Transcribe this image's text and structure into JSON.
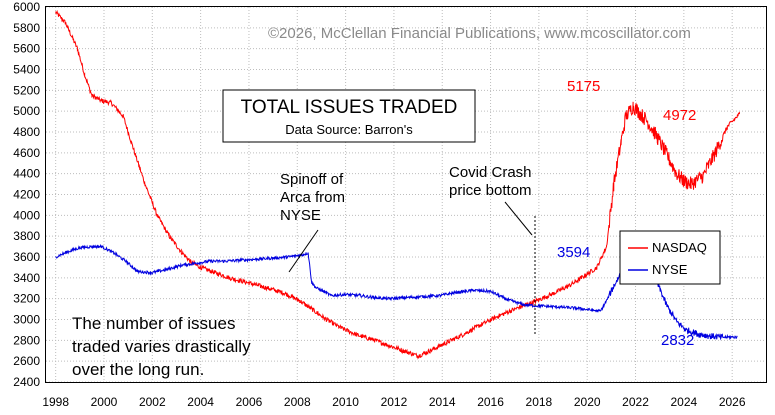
{
  "copyright": "©2026, McClellan Financial Publications, www.mcoscillator.com",
  "chart_data": {
    "type": "line",
    "title": "TOTAL ISSUES TRADED",
    "subtitle": "Data Source: Barron's",
    "xlim": [
      1997.6,
      2027.4
    ],
    "ylim": [
      2400,
      6000
    ],
    "y_ticks": [
      "2400",
      "2600",
      "2800",
      "3000",
      "3200",
      "3400",
      "3600",
      "3800",
      "4000",
      "4200",
      "4400",
      "4600",
      "4800",
      "5000",
      "5200",
      "5400",
      "5600",
      "5800",
      "6000"
    ],
    "x_ticks": [
      "1998",
      "2000",
      "2002",
      "2004",
      "2006",
      "2008",
      "2010",
      "2012",
      "2014",
      "2016",
      "2018",
      "2020",
      "2022",
      "2024",
      "2026"
    ],
    "grid": true,
    "legend_position": "right",
    "series": [
      {
        "name": "NASDAQ",
        "color": "#ff0000",
        "noise": 22,
        "x": [
          1998.0,
          1998.4,
          1998.9,
          1999.2,
          1999.5,
          1999.9,
          2000.3,
          2000.8,
          2001.2,
          2001.7,
          2002.2,
          2002.7,
          2003.2,
          2003.6,
          2004.0,
          2004.6,
          2005.2,
          2006.0,
          2006.8,
          2007.5,
          2008.1,
          2008.6,
          2009.2,
          2009.8,
          2010.5,
          2011.2,
          2011.8,
          2012.4,
          2013.0,
          2013.5,
          2014.2,
          2014.9,
          2015.6,
          2016.3,
          2017.0,
          2017.8,
          2018.6,
          2019.3,
          2019.9,
          2020.4,
          2020.8,
          2021.1,
          2021.4,
          2021.6,
          2021.9,
          2022.1,
          2022.5,
          2022.9,
          2023.3,
          2023.7,
          2024.0,
          2024.3,
          2024.8,
          2025.3,
          2025.8,
          2026.3
        ],
        "y": [
          5950,
          5850,
          5600,
          5350,
          5150,
          5100,
          5080,
          4950,
          4650,
          4300,
          4000,
          3800,
          3650,
          3550,
          3500,
          3450,
          3400,
          3350,
          3300,
          3250,
          3180,
          3100,
          3000,
          2920,
          2850,
          2800,
          2750,
          2700,
          2650,
          2700,
          2780,
          2860,
          2950,
          3030,
          3100,
          3170,
          3250,
          3330,
          3420,
          3500,
          3700,
          4300,
          4700,
          4950,
          5050,
          5000,
          4900,
          4750,
          4580,
          4400,
          4330,
          4300,
          4380,
          4600,
          4850,
          4972
        ],
        "end_label": "4972",
        "peak_label": "5175"
      },
      {
        "name": "NYSE",
        "color": "#0000e0",
        "noise": 14,
        "x": [
          1998.0,
          1998.5,
          1999.0,
          1999.5,
          1999.9,
          2000.4,
          2000.9,
          2001.4,
          2002.0,
          2002.6,
          2003.2,
          2003.8,
          2004.4,
          2005.0,
          2005.7,
          2006.4,
          2007.0,
          2007.6,
          2008.2,
          2008.45,
          2008.6,
          2008.8,
          2009.0,
          2009.4,
          2010.0,
          2010.6,
          2011.2,
          2011.8,
          2012.5,
          2013.2,
          2013.9,
          2014.6,
          2015.3,
          2016.0,
          2016.7,
          2017.4,
          2018.1,
          2018.8,
          2019.5,
          2020.2,
          2020.55,
          2020.8,
          2021.1,
          2021.4,
          2021.7,
          2022.1,
          2022.5,
          2022.9,
          2023.3,
          2023.7,
          2024.1,
          2024.6,
          2025.1,
          2025.6,
          2026.2
        ],
        "y": [
          3600,
          3650,
          3690,
          3700,
          3700,
          3640,
          3560,
          3460,
          3450,
          3480,
          3520,
          3540,
          3560,
          3560,
          3570,
          3580,
          3590,
          3600,
          3620,
          3640,
          3350,
          3300,
          3280,
          3230,
          3240,
          3230,
          3210,
          3200,
          3210,
          3220,
          3230,
          3260,
          3280,
          3270,
          3190,
          3140,
          3130,
          3120,
          3110,
          3090,
          3080,
          3180,
          3320,
          3450,
          3520,
          3540,
          3480,
          3350,
          3130,
          2980,
          2900,
          2860,
          2840,
          2830,
          2832
        ],
        "end_label": "2832",
        "peak_label": "3594"
      }
    ],
    "annotations": [
      {
        "lines": [
          "Spinoff of",
          "Arca from",
          "NYSE"
        ]
      },
      {
        "lines": [
          "Covid Crash",
          "price bottom"
        ]
      },
      {
        "lines": [
          "The number of issues",
          "traded varies drastically",
          "over the long run."
        ]
      }
    ]
  }
}
